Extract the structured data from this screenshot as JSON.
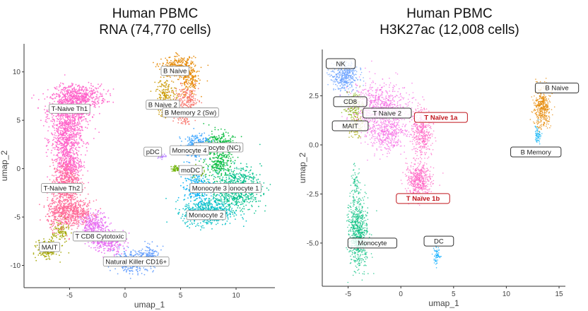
{
  "chart_data": [
    {
      "type": "scatter",
      "title": [
        "Human PBMC",
        "RNA (74,770 cells)"
      ],
      "xlabel": "umap_1",
      "ylabel": "umap_2",
      "xlim": [
        -9.1,
        13.5
      ],
      "ylim": [
        -12.3,
        12.9
      ],
      "xticks": [
        -5,
        0,
        5,
        10
      ],
      "yticks": [
        10,
        5,
        0,
        -5,
        -10
      ],
      "grid": false,
      "legend": "none",
      "clusters": [
        {
          "label": "T-Naive Th1",
          "color": "#FF61C9",
          "label_pos": [
            -5.0,
            6.2
          ],
          "blobs": [
            [
              -5,
              6,
              1.3,
              1.5,
              700
            ],
            [
              -4,
              7.5,
              1.5,
              0.8,
              400
            ],
            [
              -5.3,
              3,
              0.9,
              1.5,
              500
            ],
            [
              -5,
              0.5,
              0.8,
              1.2,
              300
            ]
          ]
        },
        {
          "label": "T-Naive Th2",
          "color": "#FF6A98",
          "label_pos": [
            -5.7,
            -2.0
          ],
          "blobs": [
            [
              -5.3,
              -1.5,
              0.8,
              1.5,
              500
            ],
            [
              -5.5,
              -4.5,
              1,
              1.2,
              500
            ],
            [
              -4,
              -4.5,
              0.8,
              0.8,
              200
            ]
          ]
        },
        {
          "label": "MAIT",
          "color": "#A3A500",
          "label_pos": [
            -6.8,
            -8.1
          ],
          "blobs": [
            [
              -7,
              -8.3,
              0.6,
              0.6,
              250
            ],
            [
              -5.8,
              -6.5,
              0.5,
              0.8,
              100
            ]
          ]
        },
        {
          "label": "T CD8 Cytotoxic",
          "color": "#E76BF3",
          "label_pos": [
            -2.3,
            -7.0
          ],
          "blobs": [
            [
              -2.8,
              -6,
              0.8,
              1,
              300
            ],
            [
              -1.5,
              -7.5,
              1,
              0.8,
              300
            ]
          ]
        },
        {
          "label": "Natural Killer CD16+",
          "color": "#619CFF",
          "label_pos": [
            1.0,
            -9.6
          ],
          "blobs": [
            [
              0.8,
              -9.6,
              1.2,
              0.7,
              350
            ],
            [
              2.3,
              -8.8,
              0.6,
              0.6,
              100
            ]
          ]
        },
        {
          "label": "B Naive",
          "color": "#E58700",
          "label_pos": [
            4.5,
            10.1
          ],
          "blobs": [
            [
              4.8,
              10.5,
              1,
              0.7,
              300
            ],
            [
              5.8,
              9,
              0.6,
              1,
              150
            ]
          ]
        },
        {
          "label": "B Naive 2",
          "color": "#C99800",
          "label_pos": [
            3.4,
            6.6
          ],
          "blobs": [
            [
              3.7,
              7.8,
              0.6,
              1,
              150
            ],
            [
              3.6,
              6,
              0.4,
              0.5,
              60
            ]
          ]
        },
        {
          "label": "B Memory 2 (Sw)",
          "color": "#F8766D",
          "label_pos": [
            5.9,
            5.8
          ],
          "blobs": [
            [
              5.6,
              7,
              0.7,
              1,
              200
            ],
            [
              5.3,
              5.5,
              0.5,
              0.6,
              80
            ]
          ]
        },
        {
          "label": "Monocyte (NC)",
          "color": "#00BA38",
          "label_pos": [
            8.4,
            2.2
          ],
          "blobs": [
            [
              8.5,
              2.5,
              0.8,
              0.9,
              250
            ],
            [
              8.5,
              0.5,
              0.8,
              1,
              200
            ]
          ]
        },
        {
          "label": "Monocyte 1",
          "color": "#00C08B",
          "label_pos": [
            10.5,
            -2.0
          ],
          "blobs": [
            [
              10,
              -2,
              1.5,
              1.4,
              700
            ]
          ]
        },
        {
          "label": "Monocyte 2",
          "color": "#00BFC4",
          "label_pos": [
            7.3,
            -4.8
          ],
          "blobs": [
            [
              7.5,
              -4.5,
              1.5,
              0.9,
              600
            ]
          ]
        },
        {
          "label": "Monocyte 3",
          "color": "#00B0F6",
          "label_pos": [
            7.6,
            -2.0
          ],
          "blobs": [
            [
              6.5,
              -2,
              0.8,
              1,
              250
            ]
          ]
        },
        {
          "label": "Monocyte 4",
          "color": "#35A2FF",
          "label_pos": [
            5.8,
            1.9
          ],
          "blobs": [
            [
              6,
              2,
              0.7,
              0.8,
              150
            ],
            [
              6.8,
              3,
              0.7,
              0.4,
              80
            ]
          ]
        },
        {
          "label": "pDC",
          "color": "#B983FF",
          "label_pos": [
            2.5,
            1.75
          ],
          "blobs": [
            [
              3.3,
              1.3,
              0.3,
              0.15,
              30
            ]
          ]
        },
        {
          "label": "moDC",
          "color": "#6BB100",
          "label_pos": [
            5.9,
            -0.15
          ],
          "blobs": [
            [
              4.6,
              0,
              0.3,
              0.2,
              40
            ],
            [
              6.5,
              -0.3,
              0.4,
              0.4,
              60
            ]
          ]
        }
      ]
    },
    {
      "type": "scatter",
      "title": [
        "Human PBMC",
        "H3K27ac (12,008 cells)"
      ],
      "xlabel": "umap_1",
      "ylabel": "umap_2",
      "xlim": [
        -7.45,
        15.6
      ],
      "ylim": [
        -7.2,
        4.86
      ],
      "xticks": [
        -5,
        0,
        5,
        10,
        15
      ],
      "yticks": [
        "2.5",
        "0.0",
        "-2.5",
        "-5.0"
      ],
      "grid": false,
      "legend": "none",
      "clusters": [
        {
          "label": "NK",
          "color": "#619CFF",
          "label_pos": [
            -5.7,
            4.14
          ],
          "blobs": [
            [
              -5.3,
              3.5,
              0.8,
              0.5,
              400
            ]
          ]
        },
        {
          "label": "CD8",
          "color": "#7CAE00",
          "label_pos": [
            -4.8,
            2.2
          ],
          "blobs": [
            [
              -4.5,
              2,
              0.6,
              0.4,
              150
            ]
          ]
        },
        {
          "label": "T Naive 2",
          "color": "#F564E3",
          "label_pos": [
            -1.3,
            1.62
          ],
          "blobs": [
            [
              -2,
              2,
              1.8,
              0.8,
              700
            ],
            [
              -1.3,
              0.5,
              1.3,
              0.6,
              400
            ]
          ]
        },
        {
          "label": "T Naïve 1a",
          "color": "#FF61C3",
          "highlight": true,
          "label_pos": [
            3.8,
            1.4
          ],
          "blobs": [
            [
              2,
              0.7,
              0.6,
              0.8,
              400
            ]
          ]
        },
        {
          "label": "MAIT",
          "color": "#A3A500",
          "label_pos": [
            -4.8,
            0.97
          ],
          "blobs": [
            [
              -4.2,
              1,
              0.5,
              0.4,
              100
            ]
          ]
        },
        {
          "label": "B Naive",
          "color": "#E58700",
          "label_pos": [
            14.8,
            2.9
          ],
          "blobs": [
            [
              13.4,
              1.9,
              0.5,
              0.7,
              400
            ]
          ]
        },
        {
          "label": "B Memory",
          "color": "#00B0F6",
          "label_pos": [
            12.8,
            -0.36
          ],
          "blobs": [
            [
              13,
              0.5,
              0.2,
              0.4,
              60
            ]
          ]
        },
        {
          "label": "T Naïve 1b",
          "color": "#FF61C3",
          "highlight": true,
          "label_pos": [
            2.1,
            -2.73
          ],
          "blobs": [
            [
              1.7,
              -1.8,
              0.8,
              0.6,
              500
            ]
          ]
        },
        {
          "label": "Monocyte",
          "color": "#00BF7D",
          "label_pos": [
            -2.7,
            -5.0
          ],
          "blobs": [
            [
              -4,
              -4.5,
              0.6,
              1.2,
              700
            ],
            [
              -4.3,
              -2,
              0.3,
              0.6,
              60
            ]
          ]
        },
        {
          "label": "DC",
          "color": "#00A9FF",
          "label_pos": [
            3.6,
            -4.9
          ],
          "blobs": [
            [
              3.4,
              -5.6,
              0.2,
              0.3,
              60
            ]
          ]
        }
      ]
    }
  ]
}
